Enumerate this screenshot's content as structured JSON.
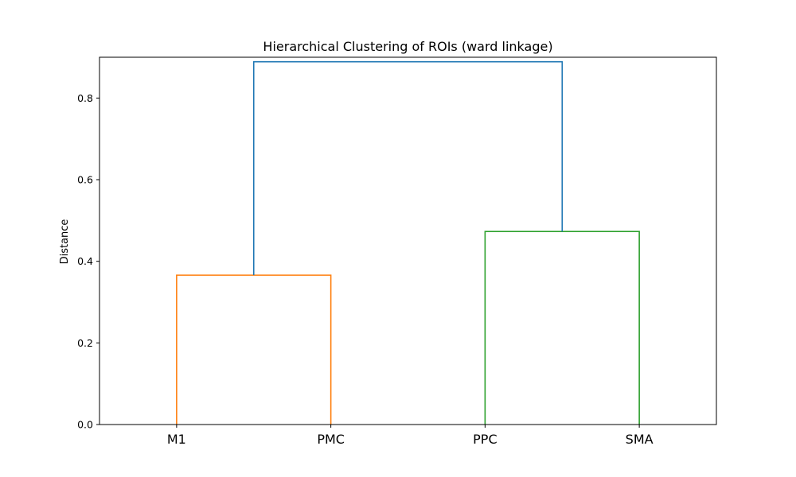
{
  "chart_data": {
    "type": "dendrogram",
    "title": "Hierarchical Clustering of ROIs (ward linkage)",
    "xlabel": "",
    "ylabel": "Distance",
    "ylim": [
      0,
      0.9
    ],
    "yticks": [
      0.0,
      0.2,
      0.4,
      0.6,
      0.8
    ],
    "ytick_labels": [
      "0.0",
      "0.2",
      "0.4",
      "0.6",
      "0.8"
    ],
    "leaves": [
      "M1",
      "PMC",
      "PPC",
      "SMA"
    ],
    "grid": false,
    "merges": [
      {
        "left": "M1",
        "right": "PMC",
        "distance": 0.366,
        "color": "#ff7f0e"
      },
      {
        "left": "PPC",
        "right": "SMA",
        "distance": 0.473,
        "color": "#2ca02c"
      },
      {
        "left": "M1+PMC",
        "right": "PPC+SMA",
        "distance": 0.889,
        "color": "#1f77b4"
      }
    ]
  }
}
